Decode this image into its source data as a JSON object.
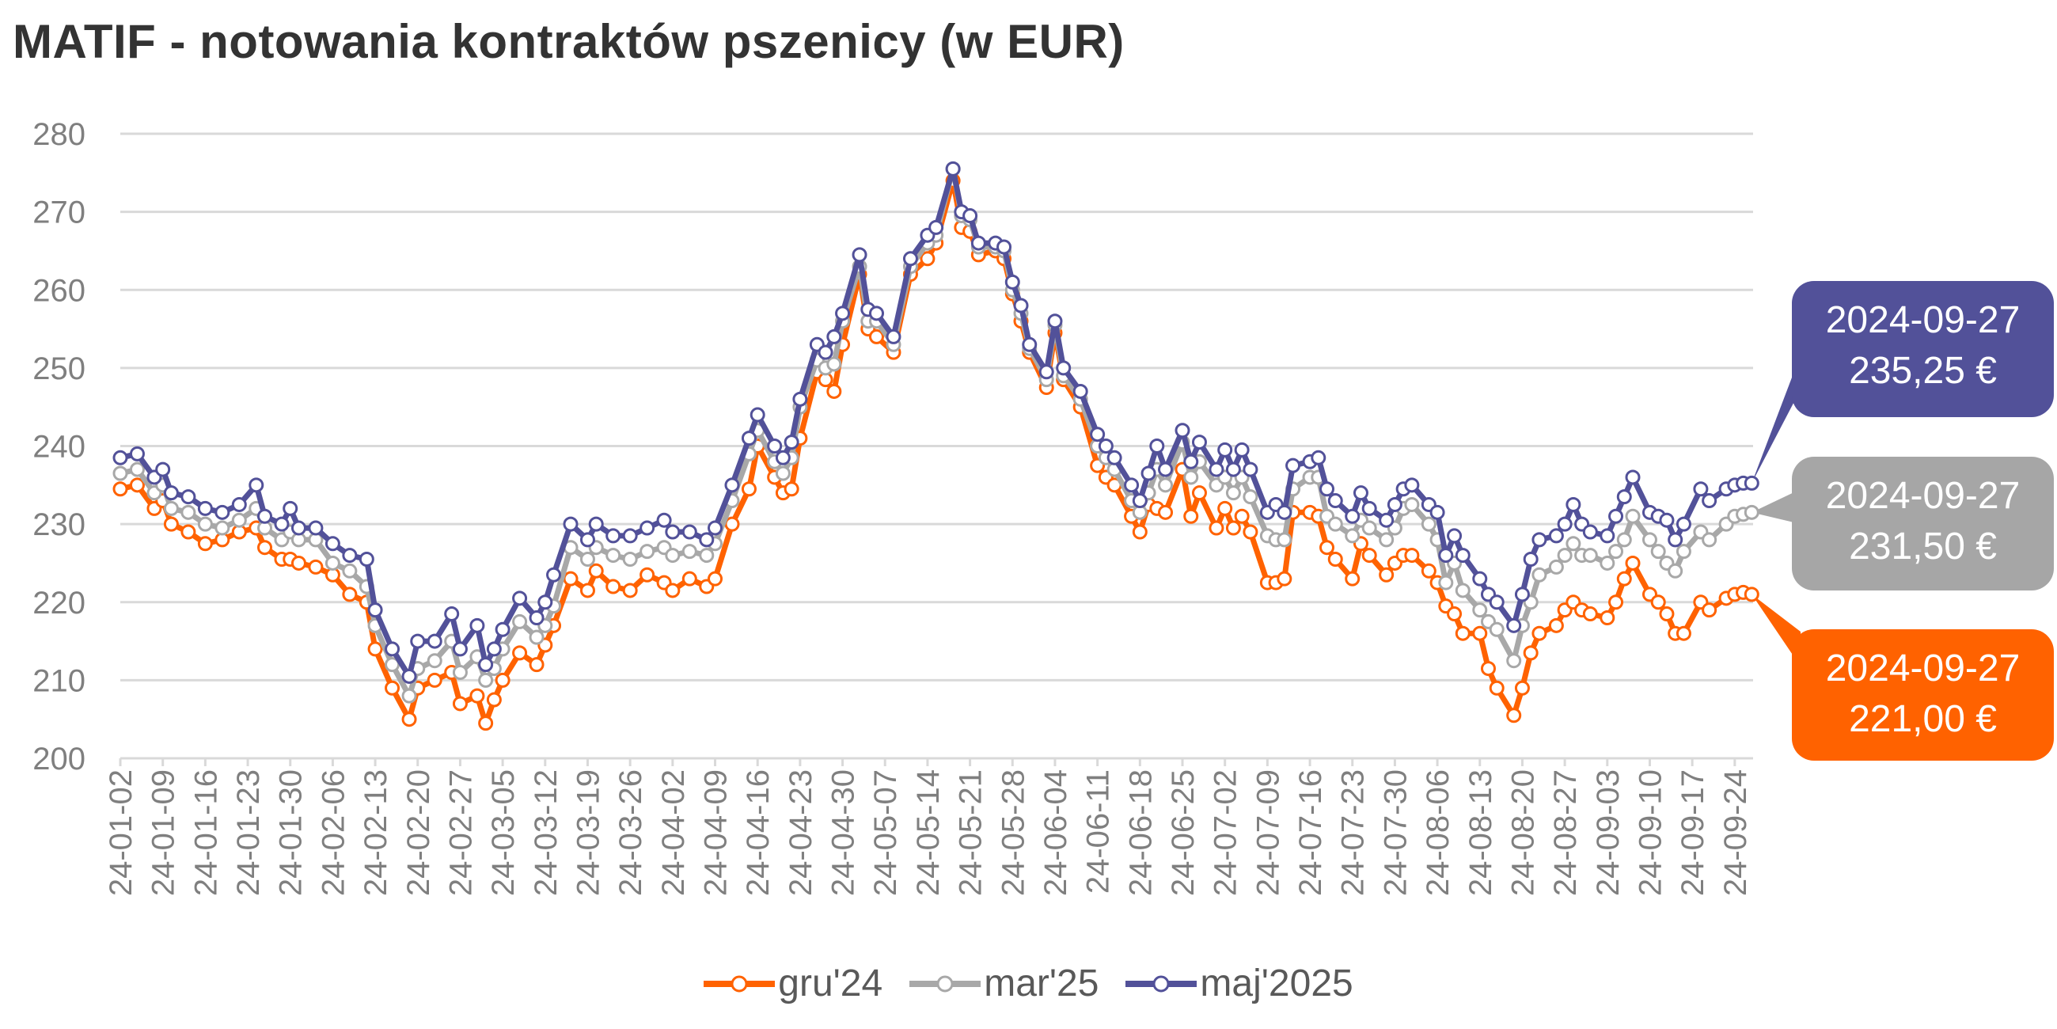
{
  "title": "MATIF - notowania kontraktów pszenicy (w EUR)",
  "callouts": [
    {
      "series": "maj'2025",
      "date": "2024-09-27",
      "value": "235,25 €",
      "color": "#525199"
    },
    {
      "series": "mar'25",
      "date": "2024-09-27",
      "value": "231,50 €",
      "color": "#a6a6a6"
    },
    {
      "series": "gru'24",
      "date": "2024-09-27",
      "value": "221,00 €",
      "color": "#ff6200"
    }
  ],
  "chart_data": {
    "type": "line",
    "title": "MATIF - notowania kontraktów pszenicy (w EUR)",
    "xlabel": "",
    "ylabel": "",
    "ylim": [
      200,
      280
    ],
    "yticks": [
      200,
      210,
      220,
      230,
      240,
      250,
      260,
      270,
      280
    ],
    "grid": true,
    "legend_position": "bottom",
    "x_unit": "weeks since 2024-01-02",
    "x_tick_labels": [
      "24-01-02",
      "24-01-09",
      "24-01-16",
      "24-01-23",
      "24-01-30",
      "24-02-06",
      "24-02-13",
      "24-02-20",
      "24-02-27",
      "24-03-05",
      "24-03-12",
      "24-03-19",
      "24-03-26",
      "24-04-02",
      "24-04-09",
      "24-04-16",
      "24-04-23",
      "24-04-30",
      "24-05-07",
      "24-05-14",
      "24-05-21",
      "24-05-28",
      "24-06-04",
      "24-06-11",
      "24-06-18",
      "24-06-25",
      "24-07-02",
      "24-07-09",
      "24-07-16",
      "24-07-23",
      "24-07-30",
      "24-08-06",
      "24-08-13",
      "24-08-20",
      "24-08-27",
      "24-09-03",
      "24-09-10",
      "24-09-17",
      "24-09-24"
    ],
    "x": [
      0,
      0.4,
      0.8,
      1.0,
      1.2,
      1.6,
      2.0,
      2.4,
      2.8,
      3.2,
      3.4,
      3.8,
      4.0,
      4.2,
      4.6,
      5.0,
      5.4,
      5.8,
      6.0,
      6.4,
      6.8,
      7.0,
      7.4,
      7.8,
      8.0,
      8.4,
      8.6,
      8.8,
      9.0,
      9.4,
      9.8,
      10.0,
      10.2,
      10.6,
      11.0,
      11.2,
      11.6,
      12.0,
      12.4,
      12.8,
      13.0,
      13.4,
      13.8,
      14.0,
      14.4,
      14.8,
      15.0,
      15.4,
      15.6,
      15.8,
      16.0,
      16.4,
      16.6,
      16.8,
      17.0,
      17.4,
      17.6,
      17.8,
      18.2,
      18.6,
      19.0,
      19.2,
      19.6,
      19.8,
      20.0,
      20.2,
      20.6,
      20.8,
      21.0,
      21.2,
      21.4,
      21.8,
      22.0,
      22.2,
      22.6,
      23.0,
      23.2,
      23.4,
      23.8,
      24.0,
      24.2,
      24.4,
      24.6,
      25.0,
      25.2,
      25.4,
      25.8,
      26.0,
      26.2,
      26.4,
      26.6,
      27.0,
      27.2,
      27.4,
      27.6,
      28.0,
      28.2,
      28.4,
      28.6,
      29.0,
      29.2,
      29.4,
      29.8,
      30.0,
      30.2,
      30.4,
      30.8,
      31.0,
      31.2,
      31.4,
      31.6,
      32.0,
      32.2,
      32.4,
      32.8,
      33.0,
      33.2,
      33.4,
      33.8,
      34.0,
      34.2,
      34.4,
      34.6,
      35.0,
      35.2,
      35.4,
      35.6,
      36.0,
      36.2,
      36.4,
      36.6,
      36.8,
      37.2,
      37.4,
      37.8,
      38.0,
      38.2,
      38.4
    ],
    "series": [
      {
        "name": "gru'24",
        "color": "#ff6200",
        "values": [
          234.5,
          235,
          232,
          233,
          230,
          229,
          227.5,
          228,
          229,
          229.5,
          227,
          225.5,
          225.5,
          225,
          224.5,
          223.5,
          221,
          220,
          214,
          209,
          205,
          209,
          210,
          211,
          207,
          208,
          204.5,
          207.5,
          210,
          213.5,
          212,
          214.5,
          217,
          223,
          221.5,
          224,
          222,
          221.5,
          223.5,
          222.5,
          221.5,
          223,
          222,
          223,
          230,
          234.5,
          240,
          236,
          234,
          234.5,
          241,
          249.5,
          248.5,
          247,
          253,
          262,
          255,
          254,
          252,
          262,
          264,
          266,
          274,
          268,
          267.5,
          264.5,
          265,
          264,
          259.5,
          256,
          252,
          247.5,
          254.5,
          248.5,
          245,
          237.5,
          236,
          235,
          231,
          229,
          232.5,
          232,
          231.5,
          237,
          231,
          234,
          229.5,
          232,
          229.5,
          231,
          229,
          222.5,
          222.5,
          223,
          231.5,
          231.5,
          231,
          227,
          225.5,
          223,
          227.5,
          226,
          223.5,
          225,
          226,
          226,
          224,
          222.5,
          219.5,
          218.5,
          216,
          216,
          211.5,
          209,
          205.5,
          209,
          213.5,
          216,
          217,
          219,
          220,
          219,
          218.5,
          218,
          220,
          223,
          225,
          221,
          220,
          218.5,
          216,
          216,
          220,
          219,
          220.5,
          221,
          221.25,
          221
        ]
      },
      {
        "name": "mar'25",
        "color": "#a8a8a8",
        "values": [
          236.5,
          237,
          234,
          235,
          232,
          231.5,
          230,
          229.5,
          230.5,
          232,
          229.5,
          228,
          229,
          228,
          228,
          225,
          224,
          222,
          217,
          212,
          208,
          211.5,
          212.5,
          215,
          211,
          213,
          210,
          211.5,
          214,
          217.5,
          215.5,
          217,
          219.5,
          227,
          225.5,
          227,
          226,
          225.5,
          226.5,
          227,
          226,
          226.5,
          226,
          227.5,
          233,
          239,
          242,
          238,
          236.5,
          238.5,
          245,
          251,
          250,
          250.5,
          256,
          263,
          256,
          256,
          253,
          263,
          266,
          267,
          275.5,
          269.5,
          269,
          265.5,
          265.5,
          265,
          260,
          257,
          252.5,
          248.5,
          255.5,
          249,
          246,
          240,
          238.5,
          237,
          233,
          231.5,
          234,
          237,
          235,
          240.5,
          236,
          238,
          235,
          236,
          234,
          236,
          233.5,
          228.5,
          228,
          228,
          234.5,
          236,
          236,
          231,
          230,
          228.5,
          230.5,
          229.5,
          228,
          229.5,
          232,
          232.5,
          230,
          228,
          222.5,
          225,
          221.5,
          219,
          217.5,
          216.5,
          212.5,
          217,
          220,
          223.5,
          224.5,
          226,
          227.5,
          226,
          226,
          225,
          226.5,
          228,
          231,
          228,
          226.5,
          225,
          224,
          226.5,
          229,
          228,
          230,
          231,
          231.25,
          231.5
        ]
      },
      {
        "name": "maj'2025",
        "color": "#525199",
        "values": [
          238.5,
          239,
          236,
          237,
          234,
          233.5,
          232,
          231.5,
          232.5,
          235,
          231,
          230,
          232,
          229.5,
          229.5,
          227.5,
          226,
          225.5,
          219,
          214,
          210.5,
          215,
          215,
          218.5,
          214,
          217,
          212,
          214,
          216.5,
          220.5,
          218,
          220,
          223.5,
          230,
          228,
          230,
          228.5,
          228.5,
          229.5,
          230.5,
          229,
          229,
          228,
          229.5,
          235,
          241,
          244,
          240,
          238.5,
          240.5,
          246,
          253,
          252,
          254,
          257,
          264.5,
          257.5,
          257,
          254,
          264,
          267,
          268,
          275.5,
          270,
          269.5,
          266,
          266,
          265.5,
          261,
          258,
          253,
          249.5,
          256,
          250,
          247,
          241.5,
          240,
          238.5,
          235,
          233,
          236.5,
          240,
          237,
          242,
          238,
          240.5,
          237,
          239.5,
          237,
          239.5,
          237,
          231.5,
          232.5,
          231.5,
          237.5,
          238,
          238.5,
          234.5,
          233,
          231,
          234,
          232,
          230.5,
          232.5,
          234.5,
          235,
          232.5,
          231.5,
          226,
          228.5,
          226,
          223,
          221,
          220,
          217,
          221,
          225.5,
          228,
          228.5,
          230,
          232.5,
          230,
          229,
          228.5,
          231,
          233.5,
          236,
          231.5,
          231,
          230.5,
          228,
          230,
          234.5,
          233,
          234.5,
          235,
          235.25,
          235.25
        ]
      }
    ]
  }
}
